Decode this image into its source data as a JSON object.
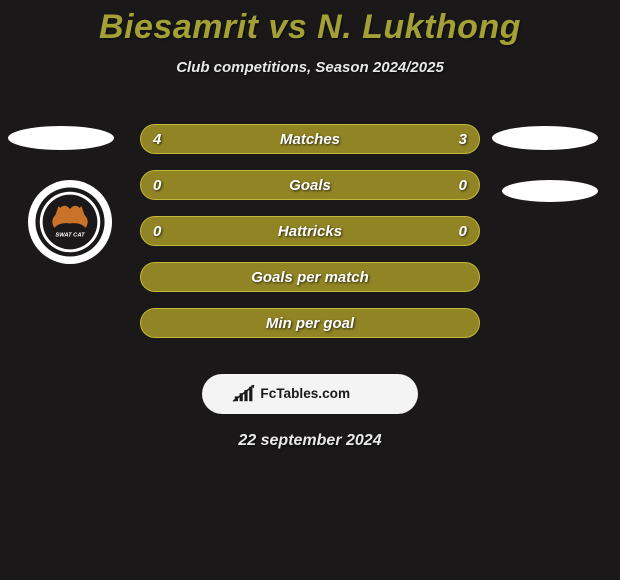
{
  "title": "Biesamrit vs N. Lukthong",
  "subtitle": "Club competitions, Season 2024/2025",
  "colors": {
    "background": "#1a1818",
    "title": "#a3a036",
    "text": "#e8e8e8",
    "bar_fill": "#908425",
    "bar_border": "#c4b838",
    "ellipse": "#ffffff",
    "footer_bg": "#f4f4f4"
  },
  "rows": [
    {
      "label": "Matches",
      "left": "4",
      "right": "3"
    },
    {
      "label": "Goals",
      "left": "0",
      "right": "0"
    },
    {
      "label": "Hattricks",
      "left": "0",
      "right": "0"
    },
    {
      "label": "Goals per match",
      "left": "",
      "right": ""
    },
    {
      "label": "Min per goal",
      "left": "",
      "right": ""
    }
  ],
  "footer_brand": "FcTables.com",
  "date": "22 september 2024",
  "club_badge": {
    "name": "Swat Cat",
    "ring_color": "#1a1818",
    "cat_color": "#c9732a"
  }
}
